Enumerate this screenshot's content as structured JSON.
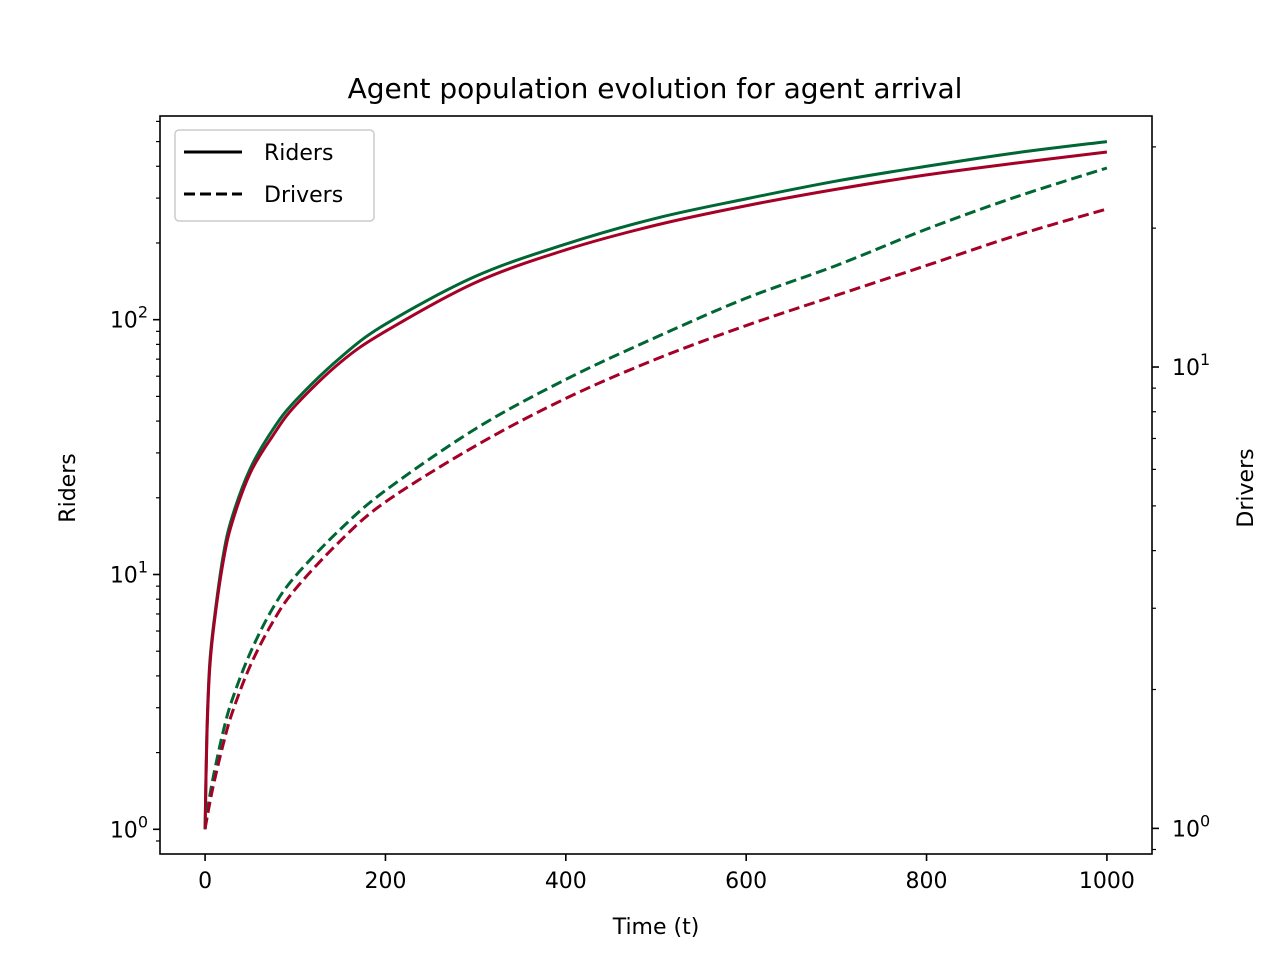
{
  "chart_data": {
    "type": "line",
    "title": "Agent population evolution for agent arrival",
    "xlabel": "Time (t)",
    "ylabel": "Riders",
    "y2label": "Drivers",
    "xlim": [
      -50,
      1050
    ],
    "ylim": [
      0.8,
      630
    ],
    "y2lim": [
      0.88,
      35
    ],
    "yscale": "log",
    "y2scale": "log",
    "x_ticks": [
      0,
      200,
      400,
      600,
      800,
      1000
    ],
    "x_tick_labels": [
      "0",
      "200",
      "400",
      "600",
      "800",
      "1000"
    ],
    "y_ticks": [
      {
        "value": 1,
        "base": "10",
        "exp": "0"
      },
      {
        "value": 10,
        "base": "10",
        "exp": "1"
      },
      {
        "value": 100,
        "base": "10",
        "exp": "2"
      }
    ],
    "y2_ticks": [
      {
        "value": 1,
        "base": "10",
        "exp": "0"
      },
      {
        "value": 10,
        "base": "10",
        "exp": "1"
      }
    ],
    "grid": false,
    "legend": {
      "placement": "top-left",
      "entries": [
        {
          "label": "Riders",
          "style": "solid"
        },
        {
          "label": "Drivers",
          "style": "dashed"
        }
      ]
    },
    "colors": {
      "green": "#006633",
      "red": "#a50026"
    },
    "x": [
      0,
      2,
      5,
      10,
      20,
      30,
      50,
      75,
      100,
      150,
      200,
      300,
      400,
      500,
      600,
      700,
      800,
      900,
      1000
    ],
    "series": [
      {
        "axis": "left",
        "style": "solid",
        "color": "green",
        "values": [
          1,
          2.4,
          4.4,
          6.6,
          11.8,
          16.8,
          26,
          37,
          48,
          71,
          96,
          148,
          198,
          250,
          298,
          350,
          400,
          452,
          500
        ]
      },
      {
        "axis": "left",
        "style": "solid",
        "color": "red",
        "values": [
          1,
          2.3,
          4.2,
          6.4,
          11.2,
          16,
          25,
          35,
          46,
          68,
          90,
          140,
          188,
          235,
          280,
          325,
          370,
          412,
          455
        ]
      },
      {
        "axis": "right",
        "style": "dashed",
        "color": "green",
        "values": [
          1,
          1.07,
          1.17,
          1.32,
          1.62,
          1.9,
          2.4,
          3.0,
          3.52,
          4.45,
          5.4,
          7.35,
          9.4,
          11.6,
          14.1,
          16.6,
          19.9,
          23.4,
          27.0
        ]
      },
      {
        "axis": "right",
        "style": "dashed",
        "color": "red",
        "values": [
          1,
          1.05,
          1.13,
          1.26,
          1.52,
          1.78,
          2.25,
          2.8,
          3.3,
          4.2,
          5.1,
          6.75,
          8.55,
          10.4,
          12.3,
          14.3,
          16.6,
          19.3,
          22.0
        ]
      }
    ]
  }
}
